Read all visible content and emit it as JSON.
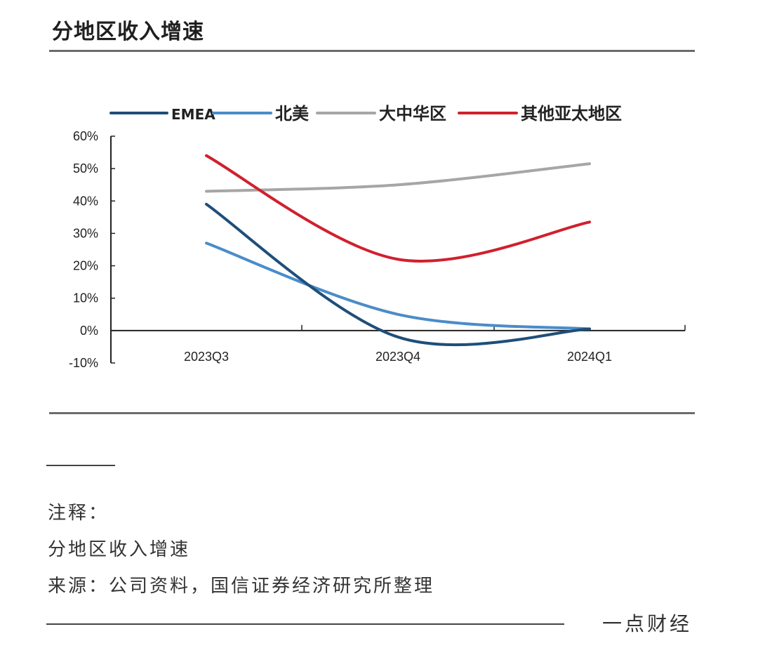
{
  "header": {
    "title": "分地区收入增速"
  },
  "chart_data": {
    "type": "line",
    "title": "分地区收入增速",
    "xlabel": "",
    "ylabel": "",
    "categories": [
      "2023Q3",
      "2023Q4",
      "2024Q1"
    ],
    "ylim": [
      -10,
      60
    ],
    "yticks": [
      60,
      50,
      40,
      30,
      20,
      10,
      0,
      -10
    ],
    "ytick_labels": [
      "60%",
      "50%",
      "40%",
      "30%",
      "20%",
      "10%",
      "0%",
      "-10%"
    ],
    "legend_position": "top",
    "series": [
      {
        "name": "EMEA",
        "color": "#1f4e79",
        "values": [
          39,
          -2,
          0.5
        ]
      },
      {
        "name": "北美",
        "color": "#4a8cc9",
        "values": [
          27,
          5,
          0.5
        ]
      },
      {
        "name": "大中华区",
        "color": "#a6a6a6",
        "values": [
          43,
          45,
          51.5
        ]
      },
      {
        "name": "其他亚太地区",
        "color": "#d0202e",
        "values": [
          54,
          22,
          33.5
        ]
      }
    ]
  },
  "notes": {
    "label": "注释：",
    "line1": "分地区收入增速",
    "source": "来源：公司资料，国信证券经济研究所整理"
  },
  "footer": {
    "brand": "一点财经"
  }
}
